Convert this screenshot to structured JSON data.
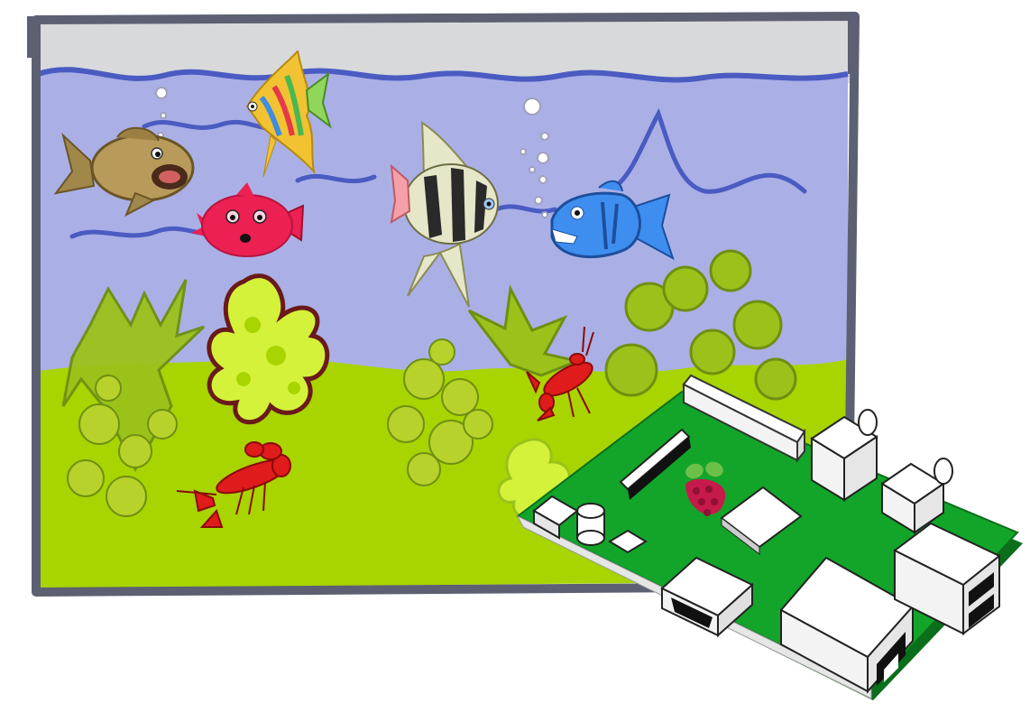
{
  "scene": {
    "subject": "aquarium-with-raspberry-pi",
    "objects": [
      "aquarium-tank",
      "water",
      "sand-bottom",
      "seaweed",
      "goby-fish",
      "pufferfish",
      "rainbow-angelfish",
      "striped-angelfish",
      "piranha",
      "bubbles",
      "lobster",
      "crayfish",
      "raspberry-pi-board",
      "raspberry-logo"
    ]
  },
  "colors": {
    "water": "#aab0e6",
    "wave": "#4a5bc2",
    "tank_top": "#d7d9db",
    "tank_frame": "#5c6072",
    "sand": "#a8d400",
    "seaweed": "#9bc21b",
    "seaweed_dark": "#6f8f12",
    "coral_fill": "#d4f23a",
    "coral_edge": "#6a1a1a",
    "pcb": "#12a52a",
    "pcb_edge": "#0b6e1b",
    "component": "#ffffff",
    "crustacean": "#e01b1b",
    "puffer": "#ec2052",
    "piranha": "#3e8ef0",
    "raspberry": "#c51a4a",
    "leaf": "#6cc04a"
  }
}
